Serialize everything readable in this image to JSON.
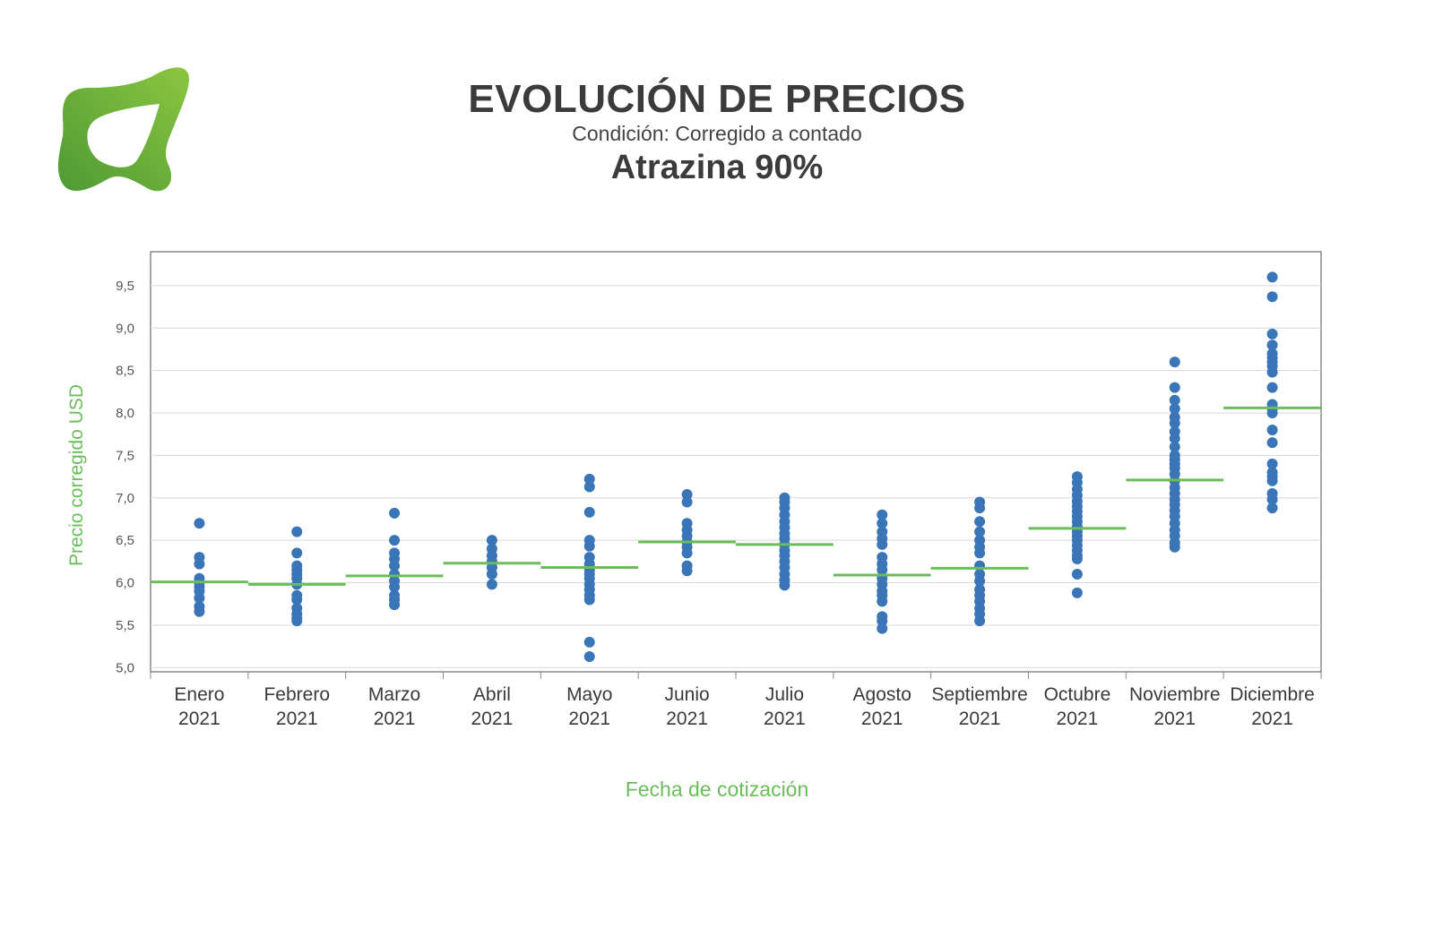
{
  "header": {
    "title": "EVOLUCIÓN DE PRECIOS",
    "subtitle": "Condición: Corregido a contado",
    "product": "Atrazina 90%"
  },
  "colors": {
    "accent": "#6bbd5b",
    "dots": "#3a75b8",
    "logo_dark": "#4e9a35",
    "logo_light": "#8cc640"
  },
  "icons": {
    "logo": "leaf-logo-icon"
  },
  "chart_data": {
    "type": "scatter",
    "xlabel": "Fecha de cotización",
    "ylabel": "Precio corregido  USD",
    "ylim": [
      4.95,
      9.9
    ],
    "yticks": [
      5.0,
      5.5,
      6.0,
      6.5,
      7.0,
      7.5,
      8.0,
      8.5,
      9.0,
      9.5
    ],
    "ytick_labels": [
      "5,0",
      "5,5",
      "6,0",
      "6,5",
      "7,0",
      "7,5",
      "8,0",
      "8,5",
      "9,0",
      "9,5"
    ],
    "grid": true,
    "categories": [
      {
        "month": "Enero",
        "year": "2021",
        "mean": 6.01,
        "points": [
          6.7,
          6.3,
          6.22,
          6.05,
          6.0,
          5.95,
          5.9,
          5.82,
          5.72,
          5.66
        ]
      },
      {
        "month": "Febrero",
        "year": "2021",
        "mean": 5.98,
        "points": [
          6.6,
          6.35,
          6.2,
          6.15,
          6.1,
          6.05,
          5.98,
          5.85,
          5.8,
          5.7,
          5.63,
          5.58,
          5.55
        ]
      },
      {
        "month": "Marzo",
        "year": "2021",
        "mean": 6.08,
        "points": [
          6.82,
          6.5,
          6.35,
          6.28,
          6.2,
          6.1,
          6.02,
          5.95,
          5.85,
          5.8,
          5.74
        ]
      },
      {
        "month": "Abril",
        "year": "2021",
        "mean": 6.23,
        "points": [
          6.5,
          6.4,
          6.32,
          6.25,
          6.18,
          6.1,
          5.98
        ]
      },
      {
        "month": "Mayo",
        "year": "2021",
        "mean": 6.18,
        "points": [
          7.22,
          7.13,
          6.83,
          6.5,
          6.43,
          6.3,
          6.22,
          6.15,
          6.1,
          6.05,
          5.98,
          5.92,
          5.85,
          5.8,
          5.3,
          5.13
        ]
      },
      {
        "month": "Junio",
        "year": "2021",
        "mean": 6.48,
        "points": [
          7.04,
          6.95,
          6.7,
          6.62,
          6.55,
          6.48,
          6.42,
          6.35,
          6.2,
          6.14
        ]
      },
      {
        "month": "Julio",
        "year": "2021",
        "mean": 6.45,
        "points": [
          7.0,
          6.95,
          6.88,
          6.8,
          6.72,
          6.65,
          6.58,
          6.52,
          6.45,
          6.38,
          6.32,
          6.25,
          6.18,
          6.1,
          6.03,
          5.97
        ]
      },
      {
        "month": "Agosto",
        "year": "2021",
        "mean": 6.09,
        "points": [
          6.8,
          6.7,
          6.6,
          6.52,
          6.45,
          6.3,
          6.22,
          6.15,
          6.05,
          5.98,
          5.9,
          5.85,
          5.78,
          5.6,
          5.55,
          5.46
        ]
      },
      {
        "month": "Septiembre",
        "year": "2021",
        "mean": 6.17,
        "points": [
          6.95,
          6.88,
          6.72,
          6.6,
          6.5,
          6.42,
          6.35,
          6.2,
          6.1,
          6.02,
          5.92,
          5.85,
          5.78,
          5.7,
          5.63,
          5.55
        ]
      },
      {
        "month": "Octubre",
        "year": "2021",
        "mean": 6.64,
        "points": [
          7.25,
          7.18,
          7.1,
          7.03,
          6.96,
          6.9,
          6.84,
          6.78,
          6.72,
          6.66,
          6.6,
          6.55,
          6.5,
          6.44,
          6.38,
          6.32,
          6.28,
          6.1,
          5.88
        ]
      },
      {
        "month": "Noviembre",
        "year": "2021",
        "mean": 7.21,
        "points": [
          8.6,
          8.3,
          8.15,
          8.05,
          7.95,
          7.88,
          7.78,
          7.7,
          7.6,
          7.5,
          7.45,
          7.4,
          7.35,
          7.28,
          7.2,
          7.12,
          7.05,
          6.98,
          6.92,
          6.85,
          6.78,
          6.7,
          6.62,
          6.55,
          6.47,
          6.42
        ]
      },
      {
        "month": "Diciembre",
        "year": "2021",
        "mean": 8.06,
        "points": [
          9.6,
          9.37,
          8.93,
          8.8,
          8.7,
          8.65,
          8.6,
          8.55,
          8.48,
          8.3,
          8.1,
          8.05,
          8.0,
          7.8,
          7.65,
          7.4,
          7.3,
          7.25,
          7.2,
          7.05,
          6.98,
          6.88
        ]
      }
    ]
  }
}
